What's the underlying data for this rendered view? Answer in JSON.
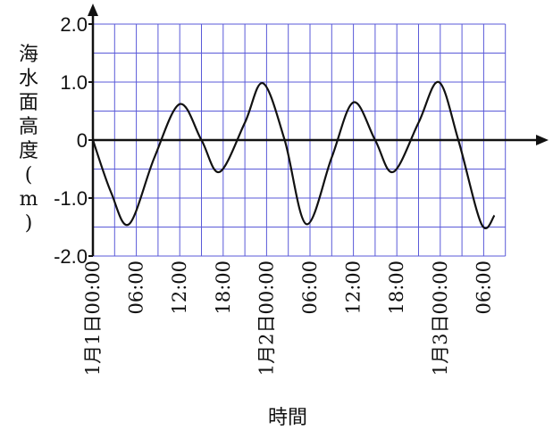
{
  "chart_data": {
    "type": "line",
    "xlabel": "時間",
    "ylabel": [
      "海",
      "水",
      "面",
      "高",
      "度",
      "(",
      "m",
      ")"
    ],
    "yticks": [
      "2.0",
      "1.0",
      "0",
      "-1.0",
      "-2.0"
    ],
    "ylim": [
      -2.0,
      2.0
    ],
    "xlim": [
      0,
      57
    ],
    "xticks": [
      {
        "hour": 0,
        "label": "1月1日00:00"
      },
      {
        "hour": 6,
        "label": "06:00"
      },
      {
        "hour": 12,
        "label": "12:00"
      },
      {
        "hour": 18,
        "label": "18:00"
      },
      {
        "hour": 24,
        "label": "1月2日00:00"
      },
      {
        "hour": 30,
        "label": "06:00"
      },
      {
        "hour": 36,
        "label": "12:00"
      },
      {
        "hour": 42,
        "label": "18:00"
      },
      {
        "hour": 48,
        "label": "1月3日00:00"
      },
      {
        "hour": 54,
        "label": "06:00"
      }
    ],
    "grid": true,
    "series": [
      {
        "color": "#111111",
        "points": [
          [
            0,
            0.0
          ],
          [
            2.5,
            -0.9
          ],
          [
            5,
            -1.45
          ],
          [
            8.5,
            -0.3
          ],
          [
            12,
            0.62
          ],
          [
            15,
            0.0
          ],
          [
            17.5,
            -0.55
          ],
          [
            21,
            0.3
          ],
          [
            23.5,
            0.98
          ],
          [
            26.5,
            0.0
          ],
          [
            29.5,
            -1.45
          ],
          [
            33,
            -0.3
          ],
          [
            36,
            0.65
          ],
          [
            39,
            0.0
          ],
          [
            41.5,
            -0.55
          ],
          [
            45,
            0.3
          ],
          [
            47.8,
            1.0
          ],
          [
            50.5,
            0.0
          ],
          [
            53.7,
            -1.45
          ],
          [
            55.5,
            -1.3
          ]
        ]
      }
    ]
  }
}
